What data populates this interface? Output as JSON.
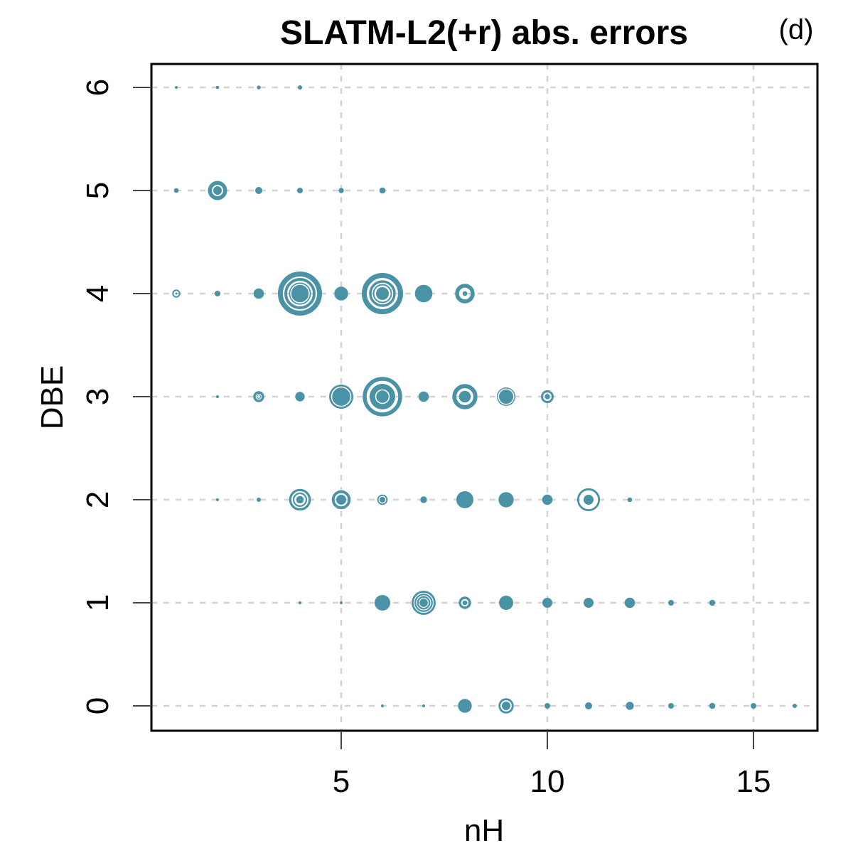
{
  "title": "SLATM-L2(+r) abs. errors",
  "panel_label": "(d)",
  "colors": {
    "bubble": "#4A92A6",
    "grid": "#D3D3D3",
    "axis": "#000000",
    "tick": "#444444",
    "ring_gap": "#FFFFFF",
    "background": "#FFFFFF"
  },
  "chart_data": {
    "type": "scatter",
    "subtype": "bubble-concentric",
    "title": "SLATM-L2(+r) abs. errors",
    "xlabel": "nH",
    "ylabel": "DBE",
    "x_ticks": [
      5,
      10,
      15
    ],
    "y_ticks": [
      0,
      1,
      2,
      3,
      4,
      5,
      6
    ],
    "xlim": [
      0.4,
      16.6
    ],
    "ylim": [
      -0.25,
      6.25
    ],
    "grid": true,
    "legend": "none",
    "bubbles": [
      {
        "x": 1,
        "y": 6,
        "c": [
          {
            "t": "f",
            "r": 2
          }
        ]
      },
      {
        "x": 2,
        "y": 6,
        "c": [
          {
            "t": "f",
            "r": 2.3
          }
        ]
      },
      {
        "x": 3,
        "y": 6,
        "c": [
          {
            "t": "f",
            "r": 2.7
          }
        ]
      },
      {
        "x": 4,
        "y": 6,
        "c": [
          {
            "t": "f",
            "r": 3
          }
        ]
      },
      {
        "x": 1,
        "y": 5,
        "c": [
          {
            "t": "f",
            "r": 3.3
          }
        ]
      },
      {
        "x": 2,
        "y": 5,
        "c": [
          {
            "t": "f",
            "r": 13.5
          },
          {
            "t": "ws",
            "r": 7,
            "w": 2
          }
        ]
      },
      {
        "x": 3,
        "y": 5,
        "c": [
          {
            "t": "f",
            "r": 5
          }
        ]
      },
      {
        "x": 4,
        "y": 5,
        "c": [
          {
            "t": "f",
            "r": 4
          }
        ]
      },
      {
        "x": 5,
        "y": 5,
        "c": [
          {
            "t": "f",
            "r": 3.7
          }
        ]
      },
      {
        "x": 6,
        "y": 5,
        "c": [
          {
            "t": "f",
            "r": 4.3
          }
        ]
      },
      {
        "x": 1,
        "y": 4,
        "c": [
          {
            "t": "s",
            "r": 4.7,
            "w": 2
          },
          {
            "t": "f",
            "r": 1.5
          }
        ]
      },
      {
        "x": 2,
        "y": 4,
        "c": [
          {
            "t": "f",
            "r": 4
          }
        ]
      },
      {
        "x": 3,
        "y": 4,
        "c": [
          {
            "t": "f",
            "r": 7.3
          }
        ]
      },
      {
        "x": 4,
        "y": 4,
        "c": [
          {
            "t": "s",
            "r": 27.5,
            "w": 7
          },
          {
            "t": "s",
            "r": 20,
            "w": 4
          },
          {
            "t": "f",
            "r": 15.5
          },
          {
            "t": "ws",
            "r": 13,
            "w": 1.5
          }
        ]
      },
      {
        "x": 5,
        "y": 4,
        "c": [
          {
            "t": "f",
            "r": 9.7
          }
        ]
      },
      {
        "x": 6,
        "y": 4,
        "c": [
          {
            "t": "s",
            "r": 25.5,
            "w": 7
          },
          {
            "t": "s",
            "r": 17,
            "w": 3.5
          },
          {
            "t": "s",
            "r": 12.5,
            "w": 2
          },
          {
            "t": "f",
            "r": 9
          }
        ]
      },
      {
        "x": 7,
        "y": 4,
        "c": [
          {
            "t": "f",
            "r": 12.3
          }
        ]
      },
      {
        "x": 8,
        "y": 4,
        "c": [
          {
            "t": "s",
            "r": 11,
            "w": 5.5
          },
          {
            "t": "f",
            "r": 3.3
          }
        ]
      },
      {
        "x": 2,
        "y": 3,
        "c": [
          {
            "t": "f",
            "r": 2
          }
        ]
      },
      {
        "x": 3,
        "y": 3,
        "c": [
          {
            "t": "s",
            "r": 6,
            "w": 3.4
          },
          {
            "t": "s",
            "r": 2.4,
            "w": 1.2
          }
        ]
      },
      {
        "x": 4,
        "y": 3,
        "c": [
          {
            "t": "f",
            "r": 6.7
          }
        ]
      },
      {
        "x": 5,
        "y": 3,
        "c": [
          {
            "t": "f",
            "r": 17
          },
          {
            "t": "ws",
            "r": 13.5,
            "w": 1.5
          }
        ]
      },
      {
        "x": 6,
        "y": 3,
        "c": [
          {
            "t": "s",
            "r": 25,
            "w": 5.5
          },
          {
            "t": "f",
            "r": 18
          },
          {
            "t": "ws",
            "r": 9.5,
            "w": 1.5
          }
        ]
      },
      {
        "x": 7,
        "y": 3,
        "c": [
          {
            "t": "f",
            "r": 7.3
          }
        ]
      },
      {
        "x": 8,
        "y": 3,
        "c": [
          {
            "t": "s",
            "r": 14.8,
            "w": 5.8
          },
          {
            "t": "f",
            "r": 8.3
          }
        ]
      },
      {
        "x": 9,
        "y": 3,
        "c": [
          {
            "t": "f",
            "r": 13
          },
          {
            "t": "ws",
            "r": 10.8,
            "w": 1.5
          }
        ]
      },
      {
        "x": 10,
        "y": 3,
        "c": [
          {
            "t": "s",
            "r": 7.5,
            "w": 3
          },
          {
            "t": "f",
            "r": 3.7
          }
        ]
      },
      {
        "x": 2,
        "y": 2,
        "c": [
          {
            "t": "f",
            "r": 2
          }
        ]
      },
      {
        "x": 3,
        "y": 2,
        "c": [
          {
            "t": "f",
            "r": 3
          }
        ]
      },
      {
        "x": 4,
        "y": 2,
        "c": [
          {
            "t": "s",
            "r": 13.7,
            "w": 3.2
          },
          {
            "t": "s",
            "r": 9,
            "w": 2.2
          },
          {
            "t": "f",
            "r": 5.3
          }
        ]
      },
      {
        "x": 5,
        "y": 2,
        "c": [
          {
            "t": "s",
            "r": 11.3,
            "w": 4
          },
          {
            "t": "f",
            "r": 7
          }
        ]
      },
      {
        "x": 6,
        "y": 2,
        "c": [
          {
            "t": "f",
            "r": 7.3
          },
          {
            "t": "ws",
            "r": 4.7,
            "w": 1.3
          }
        ]
      },
      {
        "x": 7,
        "y": 2,
        "c": [
          {
            "t": "f",
            "r": 4.7
          }
        ]
      },
      {
        "x": 8,
        "y": 2,
        "c": [
          {
            "t": "f",
            "r": 12
          }
        ]
      },
      {
        "x": 9,
        "y": 2,
        "c": [
          {
            "t": "f",
            "r": 10.7
          }
        ]
      },
      {
        "x": 10,
        "y": 2,
        "c": [
          {
            "t": "f",
            "r": 7.3
          }
        ]
      },
      {
        "x": 11,
        "y": 2,
        "c": [
          {
            "t": "s",
            "r": 14.7,
            "w": 2.8
          },
          {
            "t": "f",
            "r": 7
          }
        ]
      },
      {
        "x": 12,
        "y": 2,
        "c": [
          {
            "t": "f",
            "r": 3.3
          }
        ]
      },
      {
        "x": 4,
        "y": 1,
        "c": [
          {
            "t": "f",
            "r": 2
          }
        ]
      },
      {
        "x": 5,
        "y": 1,
        "c": [
          {
            "t": "f",
            "r": 2
          }
        ]
      },
      {
        "x": 6,
        "y": 1,
        "c": [
          {
            "t": "f",
            "r": 11
          }
        ]
      },
      {
        "x": 7,
        "y": 1,
        "c": [
          {
            "t": "f",
            "r": 17
          },
          {
            "t": "ws",
            "r": 13.5,
            "w": 1.2
          },
          {
            "t": "ws",
            "r": 10,
            "w": 1.2
          },
          {
            "t": "ws",
            "r": 6.5,
            "w": 1.2
          }
        ]
      },
      {
        "x": 8,
        "y": 1,
        "c": [
          {
            "t": "s",
            "r": 7,
            "w": 3.4
          },
          {
            "t": "f",
            "r": 3.3
          }
        ]
      },
      {
        "x": 9,
        "y": 1,
        "c": [
          {
            "t": "f",
            "r": 10
          }
        ]
      },
      {
        "x": 10,
        "y": 1,
        "c": [
          {
            "t": "f",
            "r": 7
          }
        ]
      },
      {
        "x": 11,
        "y": 1,
        "c": [
          {
            "t": "f",
            "r": 7
          }
        ]
      },
      {
        "x": 12,
        "y": 1,
        "c": [
          {
            "t": "f",
            "r": 7.3
          }
        ]
      },
      {
        "x": 13,
        "y": 1,
        "c": [
          {
            "t": "f",
            "r": 4
          }
        ]
      },
      {
        "x": 14,
        "y": 1,
        "c": [
          {
            "t": "f",
            "r": 4.3
          }
        ]
      },
      {
        "x": 6,
        "y": 0,
        "c": [
          {
            "t": "f",
            "r": 2
          }
        ]
      },
      {
        "x": 7,
        "y": 0,
        "c": [
          {
            "t": "f",
            "r": 2
          }
        ]
      },
      {
        "x": 8,
        "y": 0,
        "c": [
          {
            "t": "f",
            "r": 9.7
          }
        ]
      },
      {
        "x": 9,
        "y": 0,
        "c": [
          {
            "t": "s",
            "r": 9.3,
            "w": 2.8
          },
          {
            "t": "f",
            "r": 6
          }
        ]
      },
      {
        "x": 10,
        "y": 0,
        "c": [
          {
            "t": "f",
            "r": 4
          }
        ]
      },
      {
        "x": 11,
        "y": 0,
        "c": [
          {
            "t": "f",
            "r": 5
          }
        ]
      },
      {
        "x": 12,
        "y": 0,
        "c": [
          {
            "t": "f",
            "r": 5.7
          }
        ]
      },
      {
        "x": 13,
        "y": 0,
        "c": [
          {
            "t": "f",
            "r": 4
          }
        ]
      },
      {
        "x": 14,
        "y": 0,
        "c": [
          {
            "t": "f",
            "r": 4.3
          }
        ]
      },
      {
        "x": 15,
        "y": 0,
        "c": [
          {
            "t": "f",
            "r": 4
          }
        ]
      },
      {
        "x": 16,
        "y": 0,
        "c": [
          {
            "t": "f",
            "r": 3
          }
        ]
      }
    ]
  }
}
